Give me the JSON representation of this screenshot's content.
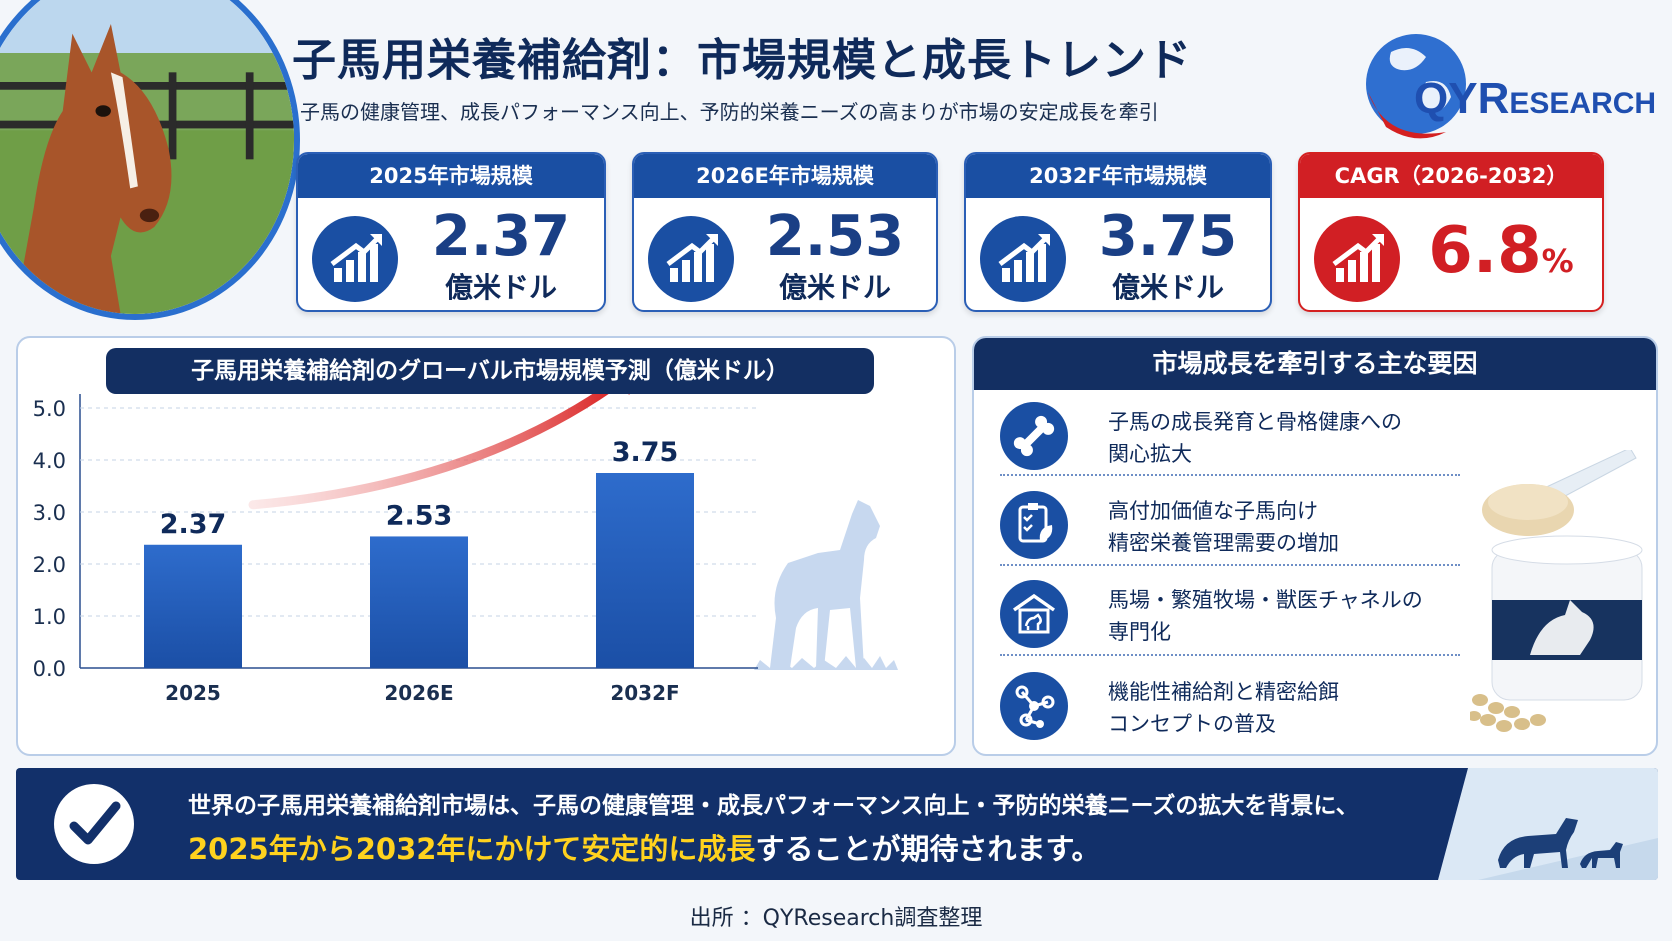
{
  "header": {
    "title": "子馬用栄養補給剤：市場規模と成長トレンド",
    "subtitle": "子馬の健康管理、成長パフォーマンス向上、予防的栄養ニーズの高まりが市場の安定成長を牽引"
  },
  "logo": {
    "q": "Q",
    "y": "Y",
    "r": "R",
    "rest": "ESEARCH"
  },
  "kpis": [
    {
      "label": "2025年市場規模",
      "value": "2.37",
      "unit": "億米ドル"
    },
    {
      "label": "2026E年市場規模",
      "value": "2.53",
      "unit": "億米ドル"
    },
    {
      "label": "2032F年市場規模",
      "value": "3.75",
      "unit": "億米ドル"
    },
    {
      "label": "CAGR（2026-2032）",
      "value": "6.8",
      "unit": "%"
    }
  ],
  "colors": {
    "navy": "#132f62",
    "blue": "#1a4fa3",
    "bar": "#2a65c4",
    "red": "#d11f24",
    "highlight": "#ffd21e"
  },
  "chart_data": {
    "type": "bar",
    "title": "子馬用栄養補給剤のグローバル市場規模予測（億米ドル）",
    "categories": [
      "2025",
      "2026E",
      "2032F"
    ],
    "values": [
      2.37,
      2.53,
      3.75
    ],
    "data_labels": [
      "2.37",
      "2.53",
      "3.75"
    ],
    "yticks": [
      "0.0",
      "1.0",
      "2.0",
      "3.0",
      "4.0",
      "5.0"
    ],
    "ylim": [
      0,
      5
    ],
    "grid": "horizontal dashed",
    "legend": "none",
    "annotation": "red growth arrow"
  },
  "drivers": {
    "title": "市場成長を牽引する主な要因",
    "items": [
      {
        "icon": "bone-icon",
        "line1": "子馬の成長発育と骨格健康への",
        "line2": "関心拡大"
      },
      {
        "icon": "clipboard-leaf-icon",
        "line1": "高付加価値な子馬向け",
        "line2": "精密栄養管理需要の増加"
      },
      {
        "icon": "stable-icon",
        "line1": "馬場・繁殖牧場・獣医チャネルの",
        "line2": "専門化"
      },
      {
        "icon": "molecule-icon",
        "line1": "機能性補給剤と精密給餌",
        "line2": "コンセプトの普及"
      }
    ]
  },
  "banner": {
    "line1": "世界の子馬用栄養補給剤市場は、子馬の健康管理・成長パフォーマンス向上・予防的栄養ニーズの拡大を背景に、",
    "line2_highlight": "2025年から2032年にかけて安定的に成長",
    "line2_rest": "することが期待されます。"
  },
  "source": "出所 ：QYResearch調査整理"
}
